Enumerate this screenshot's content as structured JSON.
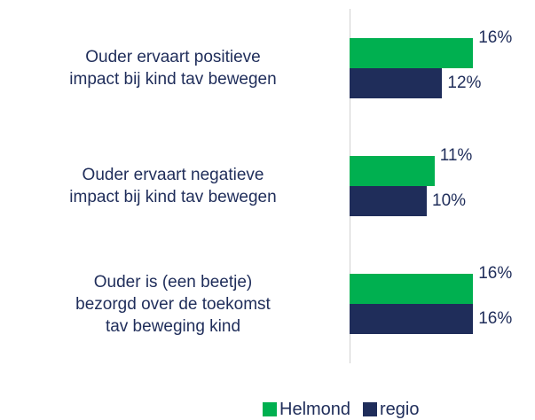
{
  "chart_data": {
    "type": "bar",
    "orientation": "horizontal",
    "categories": [
      "Ouder ervaart positieve\nimpact bij kind tav bewegen",
      "Ouder ervaart negatieve\nimpact bij kind tav bewegen",
      "Ouder is (een beetje)\nbezorgd over de toekomst\ntav beweging kind"
    ],
    "series": [
      {
        "name": "Helmond",
        "color": "#00b050",
        "values": [
          16,
          11,
          16
        ],
        "value_labels": [
          "16%",
          "11%",
          "16%"
        ]
      },
      {
        "name": "regio",
        "color": "#1f2d5a",
        "values": [
          12,
          10,
          16
        ],
        "value_labels": [
          "12%",
          "10%",
          "16%"
        ]
      }
    ],
    "legend": "bottom"
  }
}
